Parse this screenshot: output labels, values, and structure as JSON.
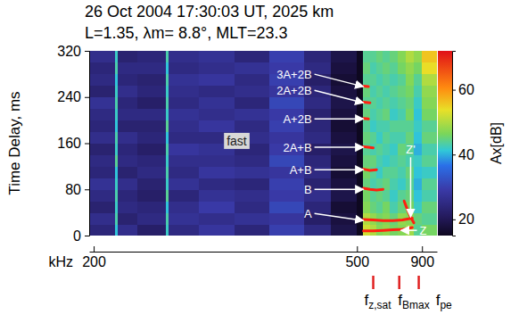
{
  "chart_data": {
    "type": "heatmap",
    "title": "26 Oct 2004 17:30:03 UT, 2025 km",
    "subtitle": "L=1.35, λm= 8.8°, MLT=23.3",
    "xlabel": "kHz",
    "ylabel": "Time Delay, ms",
    "xlim": [
      195,
      990
    ],
    "xticks": [
      200,
      500,
      900
    ],
    "ylim": [
      0,
      320
    ],
    "yticks": [
      0,
      80,
      160,
      240,
      320
    ],
    "x_edges": [
      195,
      224,
      227,
      250,
      282,
      285,
      320,
      360,
      400,
      440,
      470,
      500,
      535,
      580,
      620,
      660,
      700,
      750,
      800,
      850,
      900,
      990
    ],
    "y_edges": [
      0,
      20,
      40,
      60,
      80,
      100,
      120,
      140,
      160,
      180,
      200,
      220,
      240,
      260,
      280,
      300,
      320
    ],
    "z": [
      [
        24,
        41,
        26,
        22,
        42,
        25,
        28,
        24,
        30,
        25,
        19,
        15,
        52,
        50,
        47,
        48,
        46,
        47,
        49,
        44,
        46
      ],
      [
        26,
        43,
        23,
        25,
        43,
        27,
        26,
        27,
        28,
        22,
        18,
        15,
        50,
        48,
        46,
        47,
        45,
        48,
        47,
        45,
        44
      ],
      [
        23,
        42,
        25,
        24,
        41,
        26,
        29,
        25,
        31,
        24,
        17,
        15,
        47,
        45,
        44,
        46,
        43,
        45,
        46,
        42,
        45
      ],
      [
        25,
        43,
        24,
        22,
        44,
        24,
        27,
        26,
        29,
        26,
        19,
        15,
        46,
        44,
        45,
        44,
        42,
        44,
        45,
        41,
        43
      ],
      [
        27,
        42,
        26,
        23,
        42,
        27,
        25,
        24,
        30,
        23,
        18,
        15,
        45,
        43,
        44,
        45,
        43,
        42,
        44,
        40,
        44
      ],
      [
        24,
        41,
        23,
        25,
        43,
        25,
        28,
        27,
        28,
        25,
        17,
        15,
        46,
        44,
        42,
        44,
        44,
        43,
        45,
        41,
        42
      ],
      [
        25,
        44,
        25,
        24,
        42,
        26,
        26,
        25,
        31,
        24,
        18,
        15,
        45,
        45,
        43,
        42,
        43,
        44,
        43,
        42,
        44
      ],
      [
        23,
        42,
        24,
        22,
        43,
        28,
        27,
        24,
        29,
        22,
        19,
        15,
        44,
        43,
        44,
        43,
        42,
        45,
        44,
        40,
        43
      ],
      [
        26,
        43,
        26,
        24,
        41,
        25,
        25,
        26,
        28,
        25,
        18,
        15,
        45,
        44,
        42,
        44,
        43,
        43,
        45,
        41,
        45
      ],
      [
        24,
        41,
        23,
        23,
        44,
        26,
        28,
        25,
        30,
        24,
        17,
        15,
        44,
        42,
        43,
        43,
        44,
        44,
        44,
        42,
        44
      ],
      [
        25,
        42,
        25,
        25,
        42,
        27,
        26,
        27,
        29,
        23,
        18,
        15,
        45,
        43,
        44,
        45,
        42,
        43,
        46,
        41,
        46
      ],
      [
        27,
        43,
        24,
        22,
        43,
        25,
        27,
        24,
        31,
        25,
        19,
        15,
        44,
        44,
        43,
        44,
        43,
        44,
        45,
        42,
        47
      ],
      [
        23,
        42,
        26,
        24,
        42,
        26,
        25,
        26,
        28,
        24,
        18,
        15,
        45,
        43,
        44,
        43,
        44,
        45,
        46,
        43,
        48
      ],
      [
        25,
        41,
        24,
        23,
        43,
        27,
        28,
        25,
        30,
        22,
        17,
        15,
        44,
        44,
        43,
        44,
        43,
        44,
        47,
        44,
        50
      ],
      [
        24,
        43,
        25,
        25,
        41,
        25,
        26,
        27,
        29,
        25,
        18,
        15,
        45,
        43,
        44,
        45,
        44,
        46,
        48,
        46,
        54
      ],
      [
        26,
        42,
        23,
        24,
        43,
        26,
        27,
        24,
        30,
        24,
        19,
        15,
        44,
        44,
        45,
        44,
        45,
        47,
        50,
        48,
        56
      ]
    ],
    "colorbar": {
      "label": "Ax[dB]",
      "range": [
        15,
        72
      ],
      "ticks": [
        20,
        40,
        60
      ]
    },
    "traces": [
      {
        "x": [
          540,
          600,
          660,
          720,
          780,
          840
        ],
        "y": [
          8,
          8,
          9,
          10,
          11,
          14
        ],
        "color": "#ff2010"
      },
      {
        "x": [
          540,
          600,
          660,
          720,
          780,
          840
        ],
        "y": [
          28,
          27,
          26,
          26,
          27,
          30
        ],
        "color": "#ff2010"
      },
      {
        "x": [
          790,
          810,
          830,
          850
        ],
        "y": [
          60,
          45,
          32,
          22
        ],
        "color": "#ff2010"
      },
      {
        "x": [
          540,
          580,
          620,
          660
        ],
        "y": [
          82,
          80,
          79,
          80
        ],
        "color": "#ff2010"
      },
      {
        "x": [
          540,
          580,
          620
        ],
        "y": [
          115,
          113,
          114
        ],
        "color": "#ff2010"
      },
      {
        "x": [
          540,
          570,
          600
        ],
        "y": [
          154,
          153,
          152
        ],
        "color": "#ff2010"
      },
      {
        "x": [
          540,
          570
        ],
        "y": [
          203,
          202
        ],
        "color": "#ff2010"
      },
      {
        "x": [
          540,
          580
        ],
        "y": [
          231,
          230
        ],
        "color": "#ff2010"
      },
      {
        "x": [
          540,
          570
        ],
        "y": [
          259,
          258
        ],
        "color": "#ff2010"
      }
    ],
    "annotations": [
      {
        "text": "3A+2B",
        "x": 540,
        "y": 258
      },
      {
        "text": "2A+2B",
        "x": 540,
        "y": 230
      },
      {
        "text": "A+2B",
        "x": 540,
        "y": 202
      },
      {
        "text": "2A+B",
        "x": 540,
        "y": 153
      },
      {
        "text": "A+B",
        "x": 540,
        "y": 114
      },
      {
        "text": "B",
        "x": 540,
        "y": 80
      },
      {
        "text": "A",
        "x": 540,
        "y": 26
      },
      {
        "text": "Z'",
        "x": 830,
        "y": 32
      },
      {
        "text": "Z",
        "x": 770,
        "y": 9
      },
      {
        "text": "fast",
        "x": 363,
        "y": 164
      }
    ],
    "frequency_markers": [
      {
        "label": "f",
        "subscript": "z,sat",
        "value": 600,
        "color": "#e02020"
      },
      {
        "label": "f",
        "subscript": "Bmax",
        "value": 760,
        "color": "#e02020"
      },
      {
        "label": "f",
        "subscript": "pe",
        "value": 880,
        "color": "#e02020"
      }
    ]
  }
}
